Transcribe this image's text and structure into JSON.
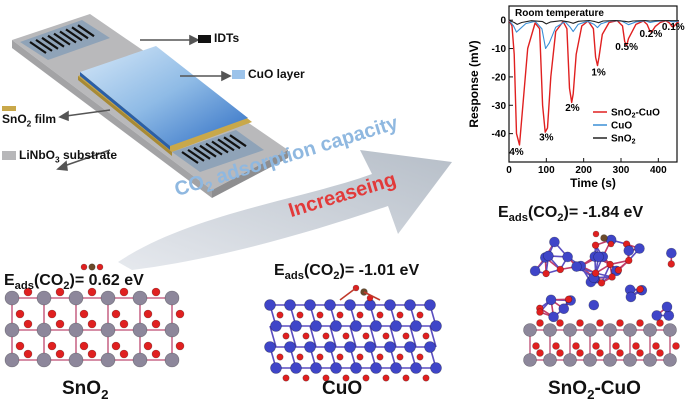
{
  "device": {
    "labels": {
      "idts": "IDTs",
      "cuo_layer": "CuO layer",
      "sno2_film": [
        "SnO",
        "2",
        " film"
      ],
      "substrate": [
        "LiNbO",
        "3",
        " substrate"
      ]
    },
    "colors": {
      "idts": "#111111",
      "cuo_layer": "#9cc3ea",
      "sno2_film": "#c9a84a",
      "substrate": "#b7b7b9"
    }
  },
  "arrow": {
    "text1": [
      "CO",
      "2",
      " adsorption capacity"
    ],
    "text2": "Increaseing",
    "colors": {
      "text1": "#8fb8e0",
      "text2": "#e23a3a"
    }
  },
  "structures": [
    {
      "name": [
        "SnO",
        "2"
      ],
      "eads": [
        "E",
        "ads",
        "(CO",
        "2",
        ")= 0.62 eV"
      ]
    },
    {
      "name": [
        "CuO"
      ],
      "eads": [
        "E",
        "ads",
        "(CO",
        "2",
        ")= -1.01 eV"
      ]
    },
    {
      "name": [
        "SnO",
        "2",
        "-CuO"
      ],
      "eads": [
        "E",
        "ads",
        "(CO",
        "2",
        ")= -1.84 eV"
      ]
    }
  ],
  "atom_colors": {
    "sn": "#8d879b",
    "o": "#e02020",
    "cu": "#3f45c8",
    "c": "#6b4a2a"
  },
  "chart_data": {
    "type": "line",
    "annotation": "Room temperature",
    "xlabel": "Time (s)",
    "ylabel": "Response (mV)",
    "xlim": [
      0,
      450
    ],
    "ylim": [
      -50,
      5
    ],
    "xticks": [
      0,
      100,
      200,
      300,
      400
    ],
    "yticks": [
      0,
      -10,
      -20,
      -30,
      -40
    ],
    "legend_position": "right",
    "concentration_labels": [
      {
        "text": "4%",
        "x": 20,
        "y": -47.5
      },
      {
        "text": "3%",
        "x": 100,
        "y": -42.5
      },
      {
        "text": "2%",
        "x": 170,
        "y": -32
      },
      {
        "text": "1%",
        "x": 240,
        "y": -19.5
      },
      {
        "text": "0.5%",
        "x": 315,
        "y": -10.5
      },
      {
        "text": "0.2%",
        "x": 380,
        "y": -6
      },
      {
        "text": "0.1%",
        "x": 440,
        "y": -3.5
      }
    ],
    "series": [
      {
        "name": [
          "SnO",
          "2",
          "-CuO"
        ],
        "color": "#e02020",
        "x": [
          0,
          8,
          14,
          20,
          28,
          36,
          50,
          70,
          82,
          90,
          97,
          103,
          112,
          125,
          145,
          155,
          162,
          168,
          172,
          180,
          195,
          212,
          226,
          232,
          237,
          241,
          250,
          268,
          290,
          304,
          310,
          315,
          320,
          340,
          360,
          370,
          378,
          382,
          392,
          405,
          420,
          430,
          436,
          440,
          448,
          455
        ],
        "y": [
          0,
          -2,
          -12,
          -40,
          -44,
          -32,
          -10,
          -1,
          -3,
          -30,
          -39.5,
          -38,
          -20,
          -4,
          -0.5,
          -3,
          -24,
          -29,
          -26,
          -12,
          -2,
          -0.3,
          -3,
          -13,
          -16,
          -13,
          -5,
          -0.8,
          -0.2,
          -2,
          -7.5,
          -9,
          -6.5,
          -1.5,
          -0.3,
          -1.5,
          -4,
          -4.2,
          -2.2,
          -0.8,
          -0.2,
          -1,
          -2.2,
          -2.4,
          -1.2,
          -0.5
        ]
      },
      {
        "name": [
          "CuO"
        ],
        "color": "#3a8fd6",
        "x": [
          0,
          12,
          20,
          30,
          45,
          70,
          88,
          98,
          108,
          125,
          150,
          164,
          172,
          185,
          210,
          228,
          237,
          246,
          270,
          300,
          312,
          320,
          340,
          365,
          378,
          390,
          420,
          432,
          440,
          455
        ],
        "y": [
          0,
          -2,
          -4.2,
          -3,
          -1.2,
          -0.4,
          -3,
          -10,
          -8,
          -2.5,
          -0.5,
          -2.5,
          -4,
          -1.5,
          -0.4,
          -1.5,
          -2.6,
          -1.3,
          -0.3,
          -0.2,
          -1,
          -1.6,
          -0.6,
          -0.2,
          -0.8,
          -0.5,
          -0.1,
          -0.4,
          -0.6,
          -0.3
        ]
      },
      {
        "name": [
          "SnO",
          "2"
        ],
        "color": "#222222",
        "x": [
          0,
          14,
          22,
          34,
          60,
          90,
          100,
          112,
          140,
          160,
          172,
          186,
          215,
          230,
          240,
          252,
          285,
          310,
          320,
          332,
          365,
          378,
          392,
          425,
          435,
          448,
          455
        ],
        "y": [
          0,
          -0.8,
          -1.5,
          -0.8,
          -0.2,
          -0.5,
          -1.3,
          -0.6,
          -0.2,
          -0.6,
          -1.1,
          -0.4,
          -0.1,
          -0.5,
          -0.9,
          -0.3,
          -0.1,
          -0.4,
          -0.6,
          -0.3,
          -0.1,
          -0.3,
          -0.2,
          -0.1,
          -0.2,
          -0.2,
          -0.1
        ]
      }
    ]
  }
}
